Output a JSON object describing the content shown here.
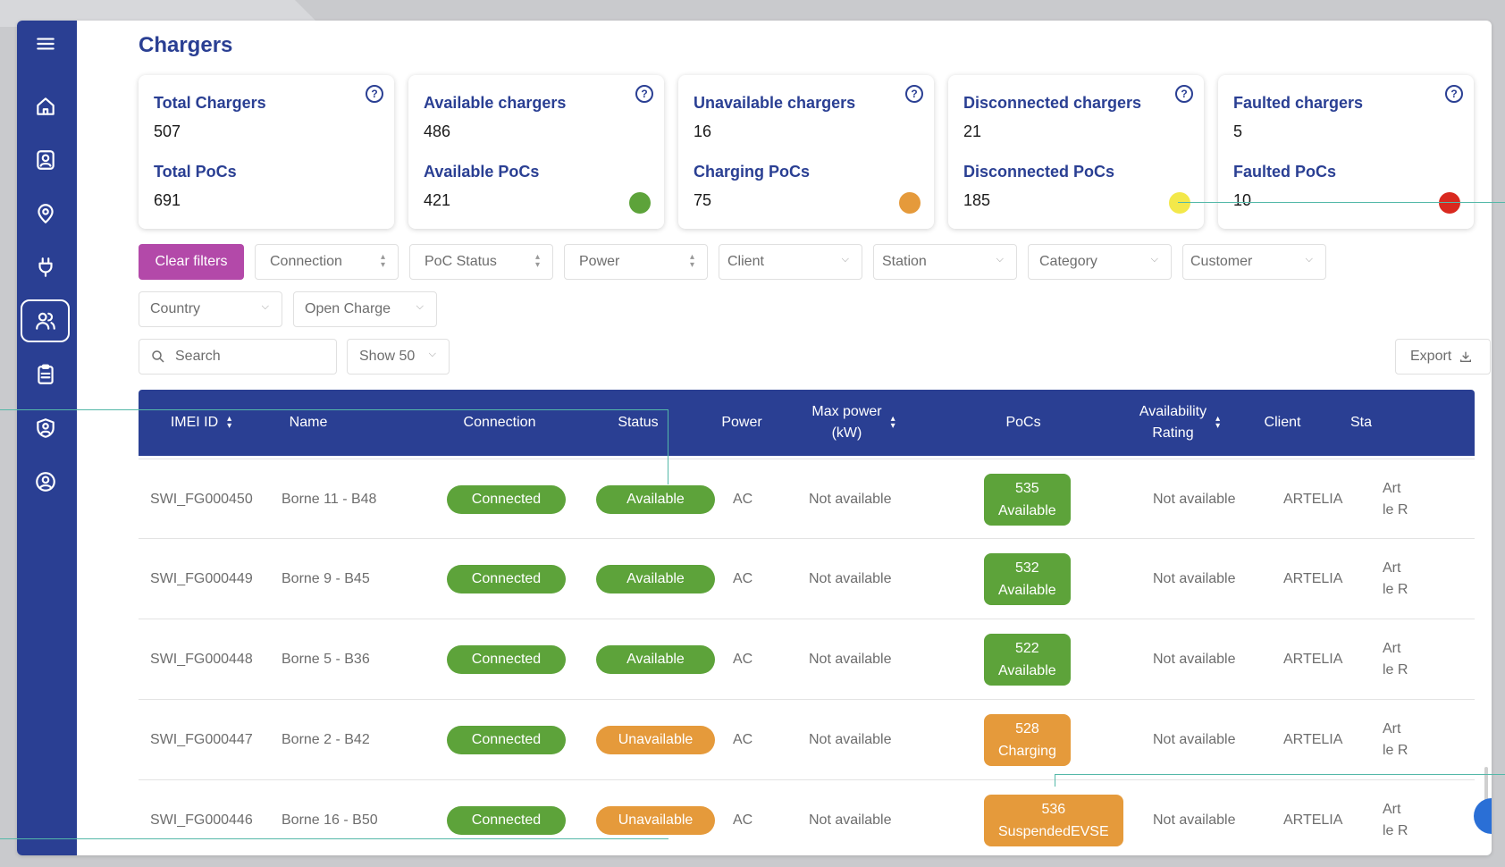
{
  "page": {
    "title": "Chargers"
  },
  "colors": {
    "sidebar": "#2a3f93",
    "accent": "#b349a9",
    "green": "#5da33a",
    "orange": "#e59a3b",
    "yellow": "#f3e84a",
    "red": "#d9291f"
  },
  "sidebar": {
    "items": [
      {
        "icon": "menu-icon"
      },
      {
        "icon": "home-icon"
      },
      {
        "icon": "contacts-icon"
      },
      {
        "icon": "location-pin-icon"
      },
      {
        "icon": "plug-icon"
      },
      {
        "icon": "users-icon",
        "active": true
      },
      {
        "icon": "clipboard-icon"
      },
      {
        "icon": "shield-user-icon"
      },
      {
        "icon": "user-circle-icon"
      }
    ]
  },
  "cards": [
    {
      "title": "Total Chargers",
      "value": "507",
      "sub_title": "Total PoCs",
      "sub_value": "691",
      "dot": null
    },
    {
      "title": "Available chargers",
      "value": "486",
      "sub_title": "Available PoCs",
      "sub_value": "421",
      "dot": "#5da33a"
    },
    {
      "title": "Unavailable chargers",
      "value": "16",
      "sub_title": "Charging PoCs",
      "sub_value": "75",
      "dot": "#e59a3b"
    },
    {
      "title": "Disconnected chargers",
      "value": "21",
      "sub_title": "Disconnected PoCs",
      "sub_value": "185",
      "dot": "#f3e84a"
    },
    {
      "title": "Faulted chargers",
      "value": "5",
      "sub_title": "Faulted PoCs",
      "sub_value": "10",
      "dot": "#d9291f"
    }
  ],
  "help_glyph": "?",
  "filters": {
    "clear_label": "Clear filters",
    "row1": [
      "Connection",
      "PoC Status",
      "Power",
      "Client",
      "Station",
      "Category",
      "Customer"
    ],
    "row2": [
      "Country",
      "Open Charge"
    ],
    "search_placeholder": "Search",
    "show_label": "Show 50",
    "export_label": "Export"
  },
  "table": {
    "headers": {
      "imei": "IMEI ID",
      "name": "Name",
      "connection": "Connection",
      "status": "Status",
      "power": "Power",
      "max_power_1": "Max power",
      "max_power_2": "(kW)",
      "pocs": "PoCs",
      "availability_1": "Availability",
      "availability_2": "Rating",
      "client": "Client",
      "station": "Sta"
    },
    "rows": [
      {
        "imei": "SWI_FG000450",
        "name": "Borne 11 - B48",
        "connection": "Connected",
        "status": "Available",
        "status_color": "green",
        "power": "AC",
        "max_power": "Not available",
        "poc_id": "535",
        "poc_status": "Available",
        "poc_color": "green",
        "availability": "Not available",
        "client": "ARTELIA",
        "station_1": "Art",
        "station_2": "le R"
      },
      {
        "imei": "SWI_FG000449",
        "name": "Borne 9 - B45",
        "connection": "Connected",
        "status": "Available",
        "status_color": "green",
        "power": "AC",
        "max_power": "Not available",
        "poc_id": "532",
        "poc_status": "Available",
        "poc_color": "green",
        "availability": "Not available",
        "client": "ARTELIA",
        "station_1": "Art",
        "station_2": "le R"
      },
      {
        "imei": "SWI_FG000448",
        "name": "Borne 5 - B36",
        "connection": "Connected",
        "status": "Available",
        "status_color": "green",
        "power": "AC",
        "max_power": "Not available",
        "poc_id": "522",
        "poc_status": "Available",
        "poc_color": "green",
        "availability": "Not available",
        "client": "ARTELIA",
        "station_1": "Art",
        "station_2": "le R"
      },
      {
        "imei": "SWI_FG000447",
        "name": "Borne 2 - B42",
        "connection": "Connected",
        "status": "Unavailable",
        "status_color": "orange",
        "power": "AC",
        "max_power": "Not available",
        "poc_id": "528",
        "poc_status": "Charging",
        "poc_color": "orange",
        "availability": "Not available",
        "client": "ARTELIA",
        "station_1": "Art",
        "station_2": "le R"
      },
      {
        "imei": "SWI_FG000446",
        "name": "Borne 16 - B50",
        "connection": "Connected",
        "status": "Unavailable",
        "status_color": "orange",
        "power": "AC",
        "max_power": "Not available",
        "poc_id": "536",
        "poc_status": "SuspendedEVSE",
        "poc_color": "orange",
        "availability": "Not available",
        "client": "ARTELIA",
        "station_1": "Art",
        "station_2": "le R"
      }
    ]
  }
}
